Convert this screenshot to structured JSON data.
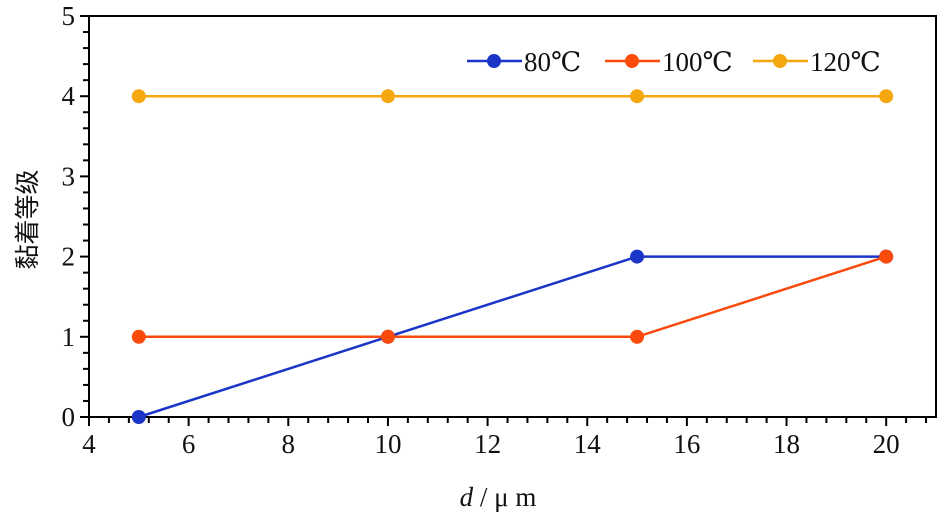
{
  "chart_data": {
    "type": "line",
    "title": "",
    "xlabel_italic": "d",
    "xlabel_rest": " / μ m",
    "ylabel": "黏着等级",
    "xlim": [
      4,
      21
    ],
    "ylim": [
      0,
      5
    ],
    "x_major_step": 2,
    "x_minor_step": 0.4,
    "y_major_step": 1,
    "y_minor_step": 0.2,
    "x_ticks": [
      "4",
      "6",
      "8",
      "10",
      "12",
      "14",
      "16",
      "18",
      "20"
    ],
    "y_ticks": [
      "0",
      "1",
      "2",
      "3",
      "4",
      "5"
    ],
    "grid": false,
    "legend_position": "top-right",
    "x": [
      5,
      10,
      15,
      20
    ],
    "series": [
      {
        "name": "80℃",
        "color": "#1a35c8",
        "values": [
          0,
          1,
          2,
          2
        ]
      },
      {
        "name": "100℃",
        "color": "#fa4a0c",
        "values": [
          1,
          1,
          1,
          2
        ]
      },
      {
        "name": "120℃",
        "color": "#f5a70f",
        "values": [
          4,
          4,
          4,
          4
        ]
      }
    ]
  }
}
